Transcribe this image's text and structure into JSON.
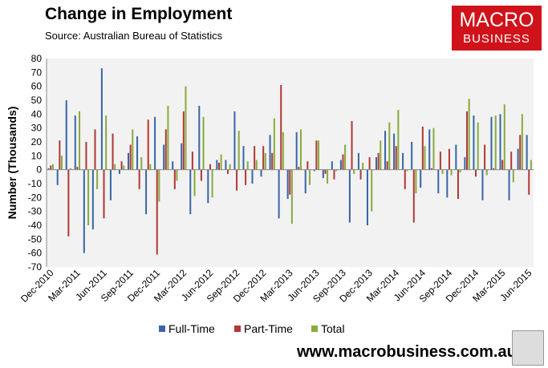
{
  "header": {
    "title": "Change in Employment",
    "source": "Source: Australian Bureau of Statistics"
  },
  "logo": {
    "line1": "MACRO",
    "line2": "BUSINESS",
    "color": "#d0121a"
  },
  "footer": {
    "url": "www.macrobusiness.com.au"
  },
  "chart_data": {
    "type": "bar",
    "title": "Change in Employment",
    "xlabel": "",
    "ylabel": "Number (Thousands)",
    "ylim": [
      -70,
      80
    ],
    "yticks": [
      -70,
      -60,
      -50,
      -40,
      -30,
      -20,
      -10,
      0,
      10,
      20,
      30,
      40,
      50,
      60,
      70,
      80
    ],
    "grid": false,
    "legend": "bottom",
    "categories": [
      "Dec-2010",
      "Jan-2011",
      "Feb-2011",
      "Mar-2011",
      "Apr-2011",
      "May-2011",
      "Jun-2011",
      "Jul-2011",
      "Aug-2011",
      "Sep-2011",
      "Oct-2011",
      "Nov-2011",
      "Dec-2011",
      "Jan-2012",
      "Feb-2012",
      "Mar-2012",
      "Apr-2012",
      "May-2012",
      "Jun-2012",
      "Jul-2012",
      "Aug-2012",
      "Sep-2012",
      "Oct-2012",
      "Nov-2012",
      "Dec-2012",
      "Jan-2013",
      "Feb-2013",
      "Mar-2013",
      "Apr-2013",
      "May-2013",
      "Jun-2013",
      "Jul-2013",
      "Aug-2013",
      "Sep-2013",
      "Oct-2013",
      "Nov-2013",
      "Dec-2013",
      "Jan-2014",
      "Feb-2014",
      "Mar-2014",
      "Apr-2014",
      "May-2014",
      "Jun-2014",
      "Jul-2014",
      "Aug-2014",
      "Sep-2014",
      "Oct-2014",
      "Nov-2014",
      "Dec-2014",
      "Jan-2015",
      "Feb-2015",
      "Mar-2015",
      "Apr-2015",
      "May-2015",
      "Jun-2015"
    ],
    "xticklabels": [
      "Dec-2010",
      "Mar-2011",
      "Jun-2011",
      "Sep-2011",
      "Dec-2011",
      "Mar-2012",
      "Jun-2012",
      "Sep-2012",
      "Dec-2012",
      "Mar-2013",
      "Jun-2013",
      "Sep-2013",
      "Dec-2013",
      "Mar-2014",
      "Jun-2014",
      "Sep-2014",
      "Dec-2014",
      "Mar-2015",
      "Jun-2015"
    ],
    "series": [
      {
        "name": "Full-Time",
        "color": "#3a66a8",
        "values": [
          1,
          -11,
          50,
          39,
          -60,
          -43,
          73,
          -22,
          -3,
          12,
          24,
          -32,
          38,
          18,
          6,
          19,
          -32,
          46,
          -24,
          7,
          7,
          42,
          17,
          -10,
          -5,
          25,
          -35,
          -21,
          27,
          -17,
          -1,
          -6,
          6,
          7,
          -38,
          12,
          -40,
          9,
          28,
          26,
          12,
          20,
          -13,
          29,
          -17,
          -20,
          18,
          9,
          39,
          -22,
          38,
          40,
          -22,
          15,
          25
        ]
      },
      {
        "name": "Part-Time",
        "color": "#b03a36",
        "values": [
          3,
          21,
          -48,
          2,
          20,
          29,
          -35,
          26,
          6,
          18,
          -14,
          36,
          -61,
          29,
          -14,
          42,
          13,
          -8,
          4,
          5,
          -3,
          -15,
          -11,
          17,
          17,
          12,
          61,
          -18,
          2,
          6,
          21,
          -3,
          -7,
          11,
          35,
          -7,
          9,
          12,
          6,
          17,
          -14,
          -38,
          31,
          1,
          13,
          15,
          -21,
          42,
          -5,
          18,
          1,
          7,
          13,
          25,
          -18
        ]
      },
      {
        "name": "Total",
        "color": "#8aab3e",
        "values": [
          4,
          10,
          1,
          42,
          -40,
          -14,
          39,
          4,
          3,
          29,
          9,
          4,
          -23,
          46,
          -8,
          60,
          -19,
          38,
          -20,
          11,
          4,
          28,
          6,
          7,
          12,
          37,
          27,
          -39,
          29,
          -11,
          21,
          -10,
          -1,
          18,
          -3,
          5,
          -30,
          21,
          34,
          43,
          -1,
          -17,
          17,
          30,
          -3,
          -4,
          -2,
          51,
          34,
          -4,
          39,
          47,
          -9,
          40,
          7
        ]
      }
    ]
  }
}
